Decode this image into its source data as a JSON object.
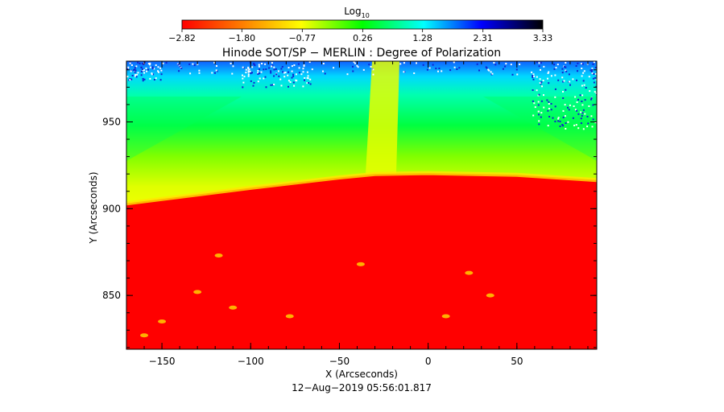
{
  "chart_data": {
    "type": "heatmap",
    "title": "Hinode SOT/SP − MERLIN : Degree of Polarization",
    "xlabel": "X (Arcseconds)",
    "ylabel": "Y (Arcseconds)",
    "footer": "12−Aug−2019 05:56:01.817",
    "xlim": [
      -170,
      95
    ],
    "ylim": [
      819,
      985
    ],
    "xticks": [
      -150,
      -100,
      -50,
      0,
      50
    ],
    "xtick_labels": [
      "−150",
      "−100",
      "−50",
      "0",
      "50"
    ],
    "yticks": [
      850,
      900,
      950
    ],
    "ytick_labels": [
      "850",
      "900",
      "950"
    ],
    "colorbar": {
      "label_base": "Log",
      "label_sub": "10",
      "range": [
        -2.82,
        3.33
      ],
      "ticks": [
        -2.82,
        -1.8,
        -0.77,
        0.26,
        1.28,
        2.31,
        3.33
      ],
      "tick_labels": [
        "−2.82",
        "−1.80",
        "−0.77",
        "0.26",
        "1.28",
        "2.31",
        "3.33"
      ],
      "colors": [
        "#ff0000",
        "#ff8000",
        "#ffff00",
        "#00ff00",
        "#00ffff",
        "#0000ff",
        "#000000"
      ]
    },
    "limb": {
      "x": [
        -170,
        -100,
        -50,
        -30,
        0,
        50,
        95
      ],
      "y": [
        903,
        912,
        918,
        920,
        920.5,
        919.5,
        916.5
      ]
    },
    "bright_patches": [
      {
        "x": -118,
        "y": 873
      },
      {
        "x": -38,
        "y": 868
      },
      {
        "x": 23,
        "y": 863
      },
      {
        "x": -110,
        "y": 843
      },
      {
        "x": -150,
        "y": 835
      },
      {
        "x": -78,
        "y": 838
      },
      {
        "x": -160,
        "y": 827
      },
      {
        "x": -130,
        "y": 852
      },
      {
        "x": 35,
        "y": 850
      },
      {
        "x": 10,
        "y": 838
      }
    ]
  }
}
